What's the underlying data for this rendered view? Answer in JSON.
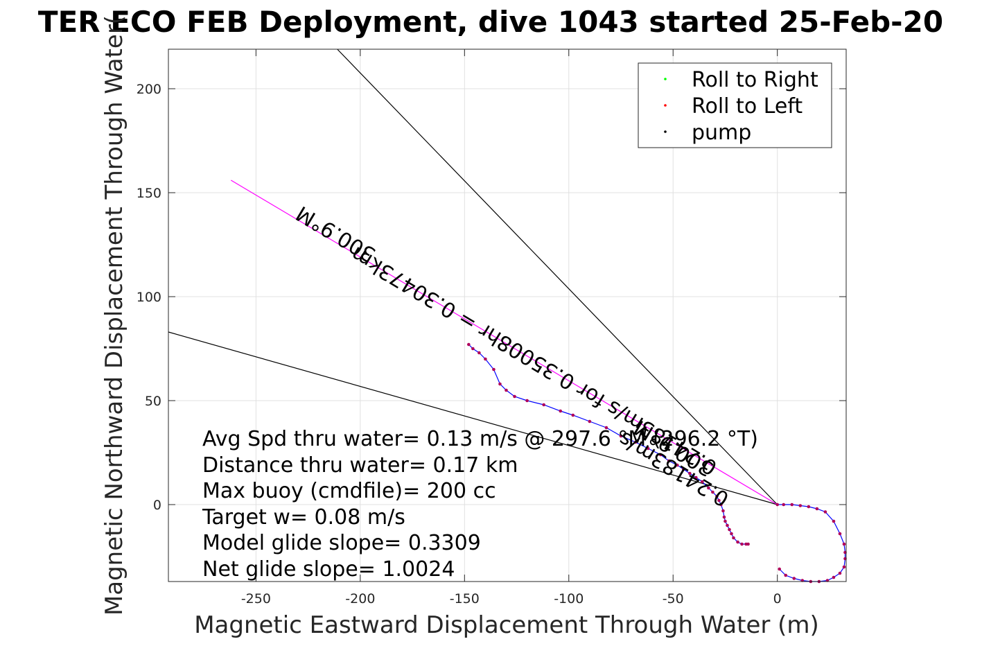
{
  "chart_data": {
    "type": "scatter",
    "title": "TER ECO FEB Deployment, dive 1043 started 25-Feb-20",
    "xlabel": "Magnetic Eastward Displacement Through Water (m)",
    "ylabel": "Magnetic Northward Displacement Through Water(",
    "xlim": [
      -292,
      33
    ],
    "ylim": [
      -37,
      219
    ],
    "xticks": [
      -250,
      -200,
      -150,
      -100,
      -50,
      0
    ],
    "xtick_labels": [
      "-250",
      "-200",
      "-150",
      "-100",
      "-50",
      "0"
    ],
    "yticks": [
      0,
      50,
      100,
      150,
      200
    ],
    "ytick_labels": [
      "0",
      "50",
      "100",
      "150",
      "200"
    ],
    "grid": true,
    "legend_position": "top-right",
    "legend": [
      {
        "label": "Roll to Right",
        "color": "#00ff00"
      },
      {
        "label": "Roll to Left",
        "color": "#ff0000"
      },
      {
        "label": "pump",
        "color": "#000000"
      }
    ],
    "track": {
      "name": "track",
      "color": "#0000ff",
      "x": [
        -148,
        -146,
        -143,
        -140,
        -136,
        -133,
        -130,
        -126,
        -120,
        -112,
        -104,
        -98,
        -90,
        -82,
        -75,
        -68,
        -62,
        -56,
        -52,
        -48,
        -45,
        -42,
        -39,
        -36,
        -33,
        -31,
        -29,
        -28,
        -27,
        -26,
        -25.5,
        -25,
        -24,
        -23,
        -22,
        -21,
        -19,
        -17,
        -15,
        -14
      ],
      "y": [
        77,
        75,
        73,
        70,
        65,
        58,
        55,
        52,
        50,
        48,
        45,
        43,
        40,
        37,
        33,
        30,
        27,
        24,
        21,
        19,
        17,
        15,
        13,
        11,
        8,
        6,
        4,
        2,
        0,
        -3,
        -6,
        -8,
        -10,
        -12,
        -14,
        -16,
        -18,
        -19,
        -19,
        -19
      ]
    },
    "loop": {
      "name": "loop",
      "color": "#0000ff",
      "x": [
        0,
        3,
        7,
        11,
        15,
        19,
        23,
        27,
        30,
        32,
        32.5,
        32.5,
        32,
        30,
        27,
        24,
        20,
        16,
        12,
        8,
        4,
        1
      ],
      "y": [
        0,
        0,
        0,
        -0.5,
        -1,
        -2,
        -3.5,
        -8,
        -14,
        -19,
        -23,
        -26,
        -30,
        -33,
        -35,
        -36.5,
        -37,
        -37,
        -36.5,
        -35.5,
        -34,
        -31
      ]
    },
    "reference_lines": [
      {
        "name": "heading-line-1",
        "x": [
          0,
          -211
        ],
        "y": [
          0,
          219
        ]
      },
      {
        "name": "heading-line-2",
        "x": [
          0,
          -292
        ],
        "y": [
          0,
          83
        ]
      },
      {
        "name": "heading-line-3",
        "x": [
          0,
          -262
        ],
        "y": [
          0,
          156
        ],
        "color": "#ff00ff"
      }
    ],
    "rotated_labels": [
      {
        "text": "300.9°M",
        "x": -210,
        "y": 133,
        "angle": 211
      },
      {
        "text": "0.24183m/s for 0.35008hr = 0.30473km",
        "x": -115,
        "y": 72,
        "angle": 211
      },
      {
        "text": "300.9°M",
        "x": -48,
        "y": 30,
        "angle": 211
      },
      {
        "text": "0.24183m/s",
        "x": -48,
        "y": 20,
        "angle": 211
      }
    ],
    "annotations": [
      "Avg Spd thru water=  0.13 m/s @ 297.6 °M (296.2 °T)",
      "Distance thru water=  0.17 km",
      "Max buoy (cmdfile)= 200 cc",
      "Target w= 0.08 m/s",
      "Model glide slope= 0.3309",
      "Net glide slope= 1.0024"
    ]
  }
}
